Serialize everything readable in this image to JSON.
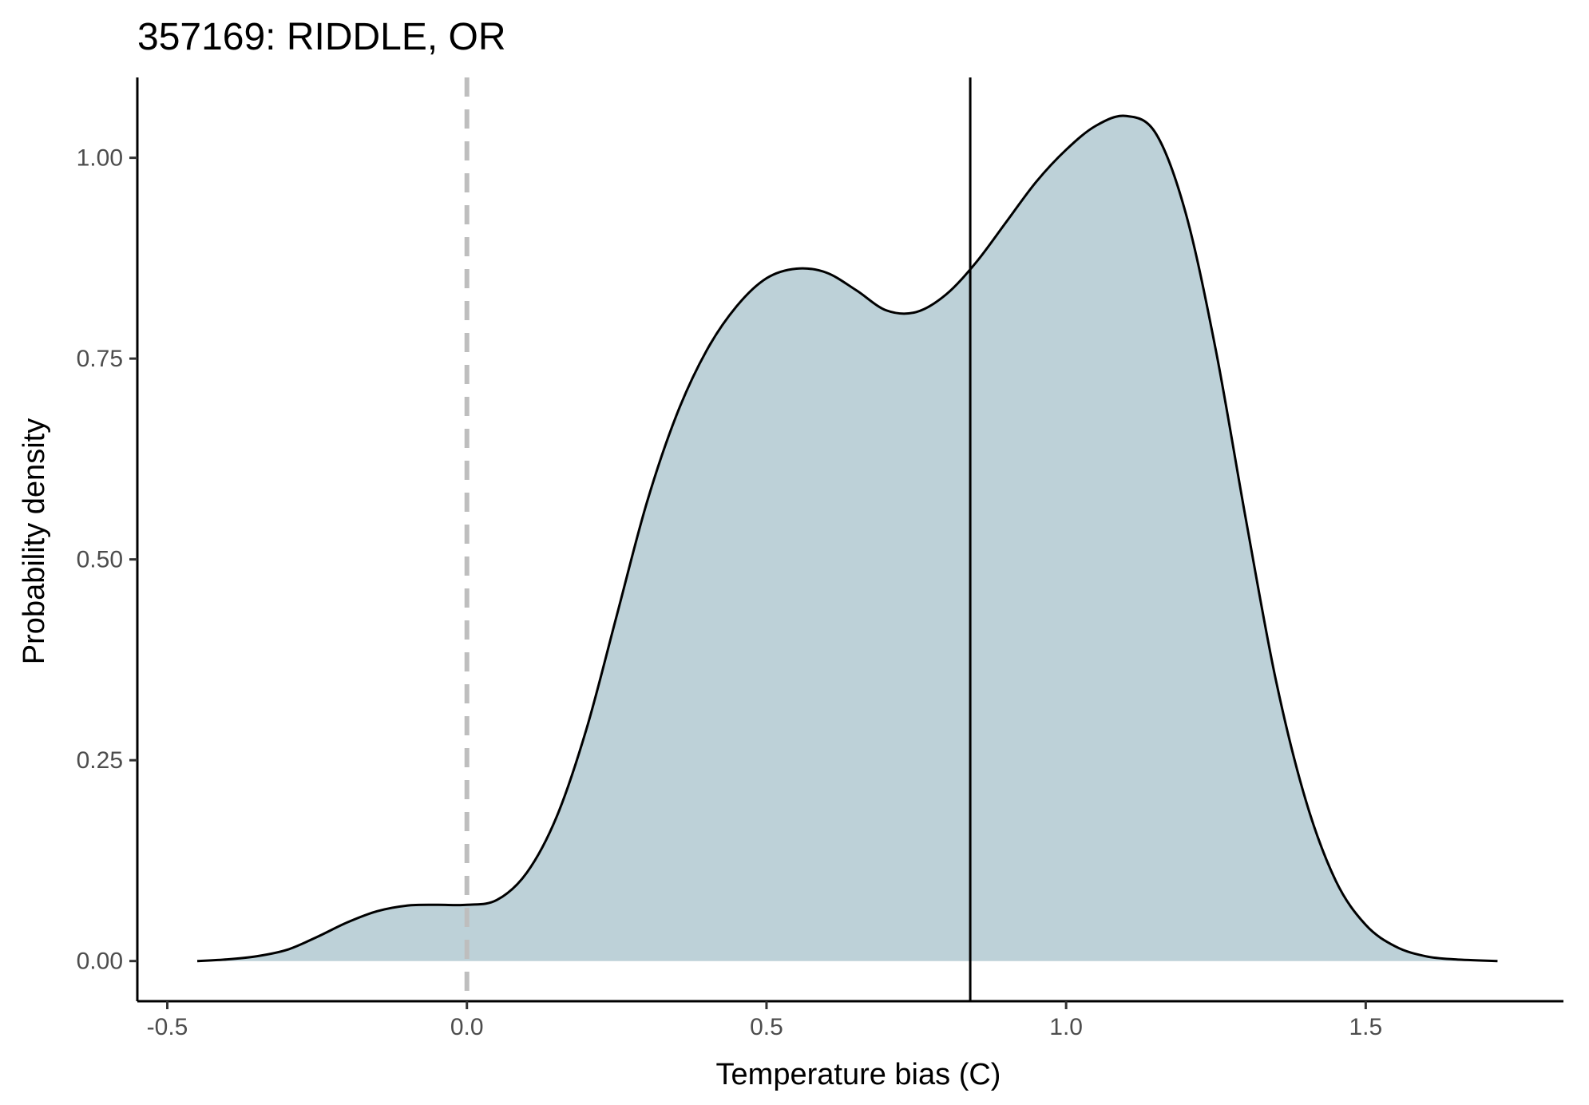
{
  "chart_data": {
    "type": "area",
    "title": "357169: RIDDLE, OR",
    "xlabel": "Temperature bias (C)",
    "ylabel": "Probability density",
    "xlim": [
      -0.55,
      1.83
    ],
    "ylim": [
      -0.05,
      1.1
    ],
    "x_ticks": [
      -0.5,
      0.0,
      0.5,
      1.0,
      1.5
    ],
    "x_tick_labels": [
      "-0.5",
      "0.0",
      "0.5",
      "1.0",
      "1.5"
    ],
    "y_ticks": [
      0.0,
      0.25,
      0.5,
      0.75,
      1.0
    ],
    "y_tick_labels": [
      "0.00",
      "0.25",
      "0.50",
      "0.75",
      "1.00"
    ],
    "grid": false,
    "fill_color": "#bdd1d8",
    "line_color": "#000000",
    "reference_lines": [
      {
        "x": 0.0,
        "style": "dashed",
        "color": "#bebebe"
      },
      {
        "x": 0.84,
        "style": "solid",
        "color": "#000000"
      }
    ],
    "series": [
      {
        "x": [
          -0.45,
          -0.4,
          -0.35,
          -0.3,
          -0.25,
          -0.2,
          -0.15,
          -0.1,
          -0.05,
          0.0,
          0.05,
          0.1,
          0.15,
          0.2,
          0.25,
          0.3,
          0.35,
          0.4,
          0.45,
          0.5,
          0.55,
          0.6,
          0.65,
          0.7,
          0.75,
          0.8,
          0.85,
          0.9,
          0.95,
          1.0,
          1.05,
          1.1,
          1.15,
          1.2,
          1.25,
          1.3,
          1.35,
          1.4,
          1.45,
          1.5,
          1.55,
          1.6,
          1.65,
          1.72
        ],
        "y": [
          0.0,
          0.002,
          0.006,
          0.014,
          0.03,
          0.048,
          0.062,
          0.069,
          0.07,
          0.07,
          0.076,
          0.11,
          0.18,
          0.29,
          0.43,
          0.57,
          0.68,
          0.76,
          0.815,
          0.85,
          0.862,
          0.857,
          0.835,
          0.81,
          0.808,
          0.83,
          0.87,
          0.92,
          0.97,
          1.01,
          1.04,
          1.052,
          1.03,
          0.93,
          0.76,
          0.55,
          0.35,
          0.2,
          0.1,
          0.045,
          0.018,
          0.006,
          0.002,
          0.0
        ]
      }
    ]
  }
}
